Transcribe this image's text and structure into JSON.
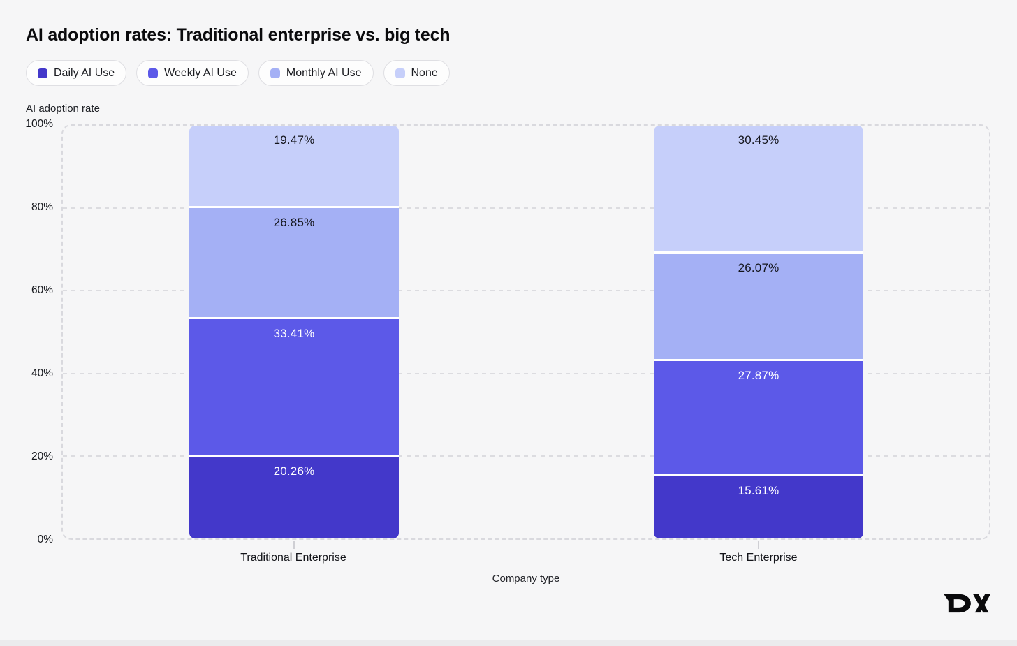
{
  "page": {
    "background": "#f6f6f7"
  },
  "header": {
    "title": "AI adoption rates: Traditional enterprise vs. big tech"
  },
  "legend": {
    "items": [
      {
        "label": "Daily AI Use",
        "color": "#4338ca"
      },
      {
        "label": "Weekly AI Use",
        "color": "#5c59e8"
      },
      {
        "label": "Monthly AI Use",
        "color": "#a4b0f5"
      },
      {
        "label": "None",
        "color": "#c6cffa"
      }
    ]
  },
  "chart_data": {
    "type": "bar",
    "stacked": true,
    "title": "AI adoption rates: Traditional enterprise vs. big tech",
    "xlabel": "Company type",
    "ylabel": "AI adoption rate",
    "categories": [
      "Traditional Enterprise",
      "Tech Enterprise"
    ],
    "series": [
      {
        "name": "Daily AI Use",
        "color": "#4338ca",
        "label_color": "#ffffff",
        "values": [
          20.26,
          15.61
        ],
        "labels": [
          "20.26%",
          "15.61%"
        ]
      },
      {
        "name": "Weekly AI Use",
        "color": "#5c59e8",
        "label_color": "#ffffff",
        "values": [
          33.41,
          27.87
        ],
        "labels": [
          "33.41%",
          "27.87%"
        ]
      },
      {
        "name": "Monthly AI Use",
        "color": "#a4b0f5",
        "label_color": "#14151c",
        "values": [
          26.85,
          26.07
        ],
        "labels": [
          "26.85%",
          "26.07%"
        ]
      },
      {
        "name": "None",
        "color": "#c6cffa",
        "label_color": "#14151c",
        "values": [
          19.47,
          30.45
        ],
        "labels": [
          "19.47%",
          "30.45%"
        ]
      }
    ],
    "y_ticks": [
      "100%",
      "80%",
      "60%",
      "40%",
      "20%",
      "0%"
    ],
    "ylim": [
      0,
      100
    ],
    "grid": "dashed horizontal at 20% intervals",
    "legend_position": "top-left"
  },
  "footer": {
    "logo_text": "DX"
  }
}
